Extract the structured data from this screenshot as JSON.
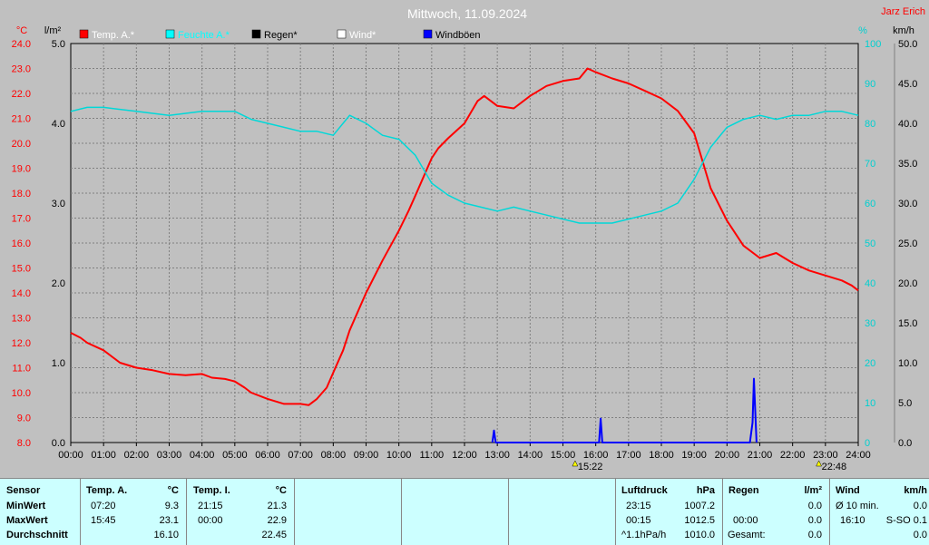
{
  "chart_data": {
    "type": "line",
    "title": "Mittwoch, 11.09.2024",
    "author": "Jarz Erich",
    "x_ticks": [
      "00:00",
      "01:00",
      "02:00",
      "03:00",
      "04:00",
      "05:00",
      "06:00",
      "07:00",
      "08:00",
      "09:00",
      "10:00",
      "11:00",
      "12:00",
      "13:00",
      "14:00",
      "15:00",
      "16:00",
      "17:00",
      "18:00",
      "19:00",
      "20:00",
      "21:00",
      "22:00",
      "23:00",
      "24:00"
    ],
    "axes": {
      "temp": {
        "unit": "°C",
        "min": 8.0,
        "max": 24.0,
        "step": 1.0,
        "color": "#ff0000"
      },
      "rain": {
        "unit": "l/m²",
        "min": 0.0,
        "max": 5.0,
        "step": 1.0,
        "color": "#000000"
      },
      "humidity": {
        "unit": "%",
        "min": 0,
        "max": 100,
        "step": 10,
        "color": "#00d0d0"
      },
      "wind": {
        "unit": "km/h",
        "min": 0.0,
        "max": 50.0,
        "step": 5.0,
        "color": "#000000"
      }
    },
    "legend": [
      {
        "name": "Temp. A.*",
        "color": "#ff0000"
      },
      {
        "name": "Feuchte A.*",
        "color": "#00ffff"
      },
      {
        "name": "Regen*",
        "color": "#000000"
      },
      {
        "name": "Wind*",
        "color": "#ffffff"
      },
      {
        "name": "Windböen",
        "color": "#0000ff"
      }
    ],
    "markers": [
      {
        "label": "15:22",
        "hour": 15.37
      },
      {
        "label": "22:48",
        "hour": 22.8
      }
    ],
    "series": [
      {
        "name": "Temp. A.*",
        "axis": "temp",
        "color": "#ff0000",
        "points": [
          [
            0,
            12.4
          ],
          [
            0.3,
            12.2
          ],
          [
            0.5,
            12.0
          ],
          [
            1,
            11.7
          ],
          [
            1.3,
            11.4
          ],
          [
            1.5,
            11.2
          ],
          [
            2,
            11.0
          ],
          [
            2.5,
            10.9
          ],
          [
            3,
            10.75
          ],
          [
            3.5,
            10.7
          ],
          [
            4,
            10.75
          ],
          [
            4.3,
            10.6
          ],
          [
            4.7,
            10.55
          ],
          [
            5,
            10.45
          ],
          [
            5.3,
            10.2
          ],
          [
            5.5,
            10.0
          ],
          [
            6,
            9.75
          ],
          [
            6.5,
            9.55
          ],
          [
            7,
            9.55
          ],
          [
            7.25,
            9.5
          ],
          [
            7.5,
            9.75
          ],
          [
            7.8,
            10.2
          ],
          [
            8,
            10.8
          ],
          [
            8.3,
            11.7
          ],
          [
            8.5,
            12.5
          ],
          [
            9,
            14.0
          ],
          [
            9.5,
            15.3
          ],
          [
            10,
            16.5
          ],
          [
            10.3,
            17.3
          ],
          [
            10.5,
            17.9
          ],
          [
            11,
            19.4
          ],
          [
            11.2,
            19.8
          ],
          [
            11.5,
            20.2
          ],
          [
            12,
            20.8
          ],
          [
            12.4,
            21.7
          ],
          [
            12.6,
            21.9
          ],
          [
            13,
            21.5
          ],
          [
            13.5,
            21.4
          ],
          [
            14,
            21.9
          ],
          [
            14.5,
            22.3
          ],
          [
            15,
            22.5
          ],
          [
            15.5,
            22.6
          ],
          [
            15.75,
            23.0
          ],
          [
            16,
            22.85
          ],
          [
            16.5,
            22.6
          ],
          [
            17,
            22.4
          ],
          [
            17.5,
            22.1
          ],
          [
            18,
            21.8
          ],
          [
            18.5,
            21.3
          ],
          [
            19,
            20.4
          ],
          [
            19.5,
            18.2
          ],
          [
            20,
            16.9
          ],
          [
            20.5,
            15.9
          ],
          [
            21,
            15.4
          ],
          [
            21.5,
            15.6
          ],
          [
            22,
            15.2
          ],
          [
            22.5,
            14.9
          ],
          [
            23,
            14.7
          ],
          [
            23.5,
            14.5
          ],
          [
            23.8,
            14.3
          ],
          [
            24,
            14.1
          ]
        ]
      },
      {
        "name": "Feuchte A.*",
        "axis": "humidity",
        "color": "#00d8d8",
        "points": [
          [
            0,
            83
          ],
          [
            0.5,
            84
          ],
          [
            1,
            84
          ],
          [
            2,
            83
          ],
          [
            3,
            82
          ],
          [
            4,
            83
          ],
          [
            5,
            83
          ],
          [
            5.5,
            81
          ],
          [
            6,
            80
          ],
          [
            6.5,
            79
          ],
          [
            7,
            78
          ],
          [
            7.5,
            78
          ],
          [
            8,
            77
          ],
          [
            8.5,
            82
          ],
          [
            9,
            80
          ],
          [
            9.5,
            77
          ],
          [
            10,
            76
          ],
          [
            10.5,
            72
          ],
          [
            11,
            65
          ],
          [
            11.5,
            62
          ],
          [
            12,
            60
          ],
          [
            12.5,
            59
          ],
          [
            13,
            58
          ],
          [
            13.5,
            59
          ],
          [
            14,
            58
          ],
          [
            14.5,
            57
          ],
          [
            15,
            56
          ],
          [
            15.5,
            55
          ],
          [
            16,
            55
          ],
          [
            16.5,
            55
          ],
          [
            17,
            56
          ],
          [
            17.5,
            57
          ],
          [
            18,
            58
          ],
          [
            18.5,
            60
          ],
          [
            19,
            66
          ],
          [
            19.5,
            74
          ],
          [
            20,
            79
          ],
          [
            20.5,
            81
          ],
          [
            21,
            82
          ],
          [
            21.5,
            81
          ],
          [
            22,
            82
          ],
          [
            22.5,
            82
          ],
          [
            23,
            83
          ],
          [
            23.5,
            83
          ],
          [
            24,
            82
          ]
        ]
      },
      {
        "name": "Windböen",
        "axis": "wind",
        "color": "#0000ff",
        "points": [
          [
            12.85,
            0
          ],
          [
            12.9,
            1.5
          ],
          [
            12.95,
            0
          ],
          [
            16.1,
            0
          ],
          [
            16.15,
            3.0
          ],
          [
            16.2,
            0
          ],
          [
            20.7,
            0
          ],
          [
            20.78,
            2.5
          ],
          [
            20.82,
            8.0
          ],
          [
            20.9,
            0
          ]
        ]
      }
    ]
  },
  "panel": {
    "sensor": {
      "title": "Sensor",
      "rows": [
        "MinWert",
        "MaxWert",
        "Durchschnitt"
      ]
    },
    "temp_a": {
      "title": "Temp. A.",
      "unit": "°C",
      "r1t": "07:20",
      "r1v": "9.3",
      "r2t": "15:45",
      "r2v": "23.1",
      "r3v": "16.10"
    },
    "temp_i": {
      "title": "Temp. I.",
      "unit": "°C",
      "r1t": "21:15",
      "r1v": "21.3",
      "r2t": "00:00",
      "r2v": "22.9",
      "r3v": "22.45"
    },
    "luftdruck": {
      "title": "Luftdruck",
      "unit": "hPa",
      "r1t": "23:15",
      "r1v": "1007.2",
      "r2t": "00:15",
      "r2v": "1012.5",
      "r3t": "^1.1hPa/h",
      "r3v": "1010.0"
    },
    "regen": {
      "title": "Regen",
      "unit": "l/m²",
      "r2t": "00:00",
      "r2v": "0.0",
      "r3t": "Gesamt:",
      "r3v": "0.0",
      "r1v": "0.0"
    },
    "wind": {
      "title": "Wind",
      "unit": "km/h",
      "r1t": "Ø 10 min.",
      "r1v": "0.0",
      "r2t": "16:10",
      "r2v": "S-SO 0.1",
      "r3v": "0.0"
    }
  }
}
